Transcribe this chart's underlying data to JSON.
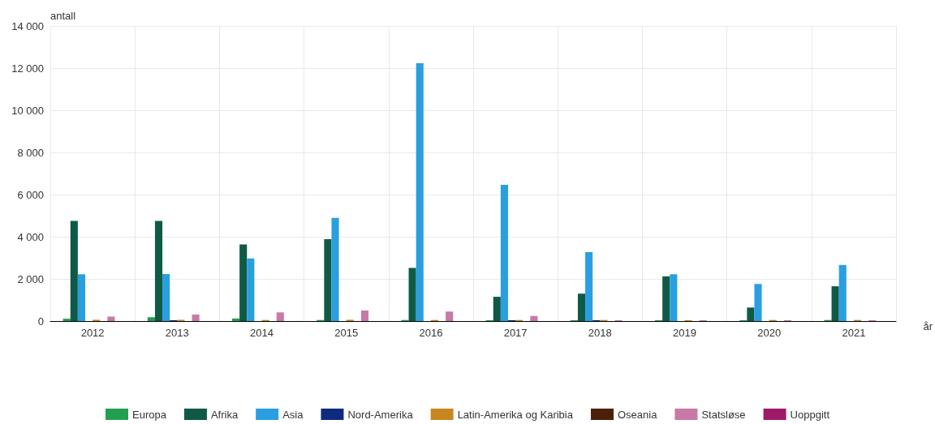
{
  "chart_data": {
    "type": "bar",
    "xlabel": "år",
    "ylabel": "antall",
    "categories": [
      "2012",
      "2013",
      "2014",
      "2015",
      "2016",
      "2017",
      "2018",
      "2019",
      "2020",
      "2021"
    ],
    "series": [
      {
        "name": "Europa",
        "color": "#22a050",
        "values": [
          110,
          180,
          120,
          50,
          50,
          40,
          40,
          40,
          40,
          50
        ]
      },
      {
        "name": "Afrika",
        "color": "#0f5a46",
        "values": [
          4750,
          4750,
          3630,
          3880,
          2520,
          1150,
          1300,
          2120,
          640,
          1650
        ]
      },
      {
        "name": "Asia",
        "color": "#2a9fe0",
        "values": [
          2220,
          2230,
          2970,
          4890,
          12230,
          6460,
          3270,
          2220,
          1760,
          2660
        ]
      },
      {
        "name": "Nord-Amerika",
        "color": "#0f2b80",
        "values": [
          0,
          40,
          0,
          0,
          0,
          40,
          40,
          0,
          0,
          0
        ]
      },
      {
        "name": "Latin-Amerika og Karibia",
        "color": "#c8861e",
        "values": [
          60,
          60,
          50,
          60,
          50,
          50,
          50,
          40,
          50,
          50
        ]
      },
      {
        "name": "Oseania",
        "color": "#4a2008",
        "values": [
          0,
          0,
          0,
          0,
          0,
          0,
          0,
          0,
          0,
          0
        ]
      },
      {
        "name": "Statsløse",
        "color": "#c879a8",
        "values": [
          210,
          310,
          410,
          500,
          450,
          240,
          40,
          40,
          40,
          40
        ]
      },
      {
        "name": "Uoppgitt",
        "color": "#a01868",
        "values": [
          0,
          0,
          0,
          0,
          0,
          0,
          0,
          0,
          0,
          0
        ]
      }
    ],
    "ylim": [
      0,
      14000
    ],
    "yticks": [
      {
        "value": 0,
        "label": "0"
      },
      {
        "value": 2000,
        "label": "2 000"
      },
      {
        "value": 4000,
        "label": "4 000"
      },
      {
        "value": 6000,
        "label": "6 000"
      },
      {
        "value": 8000,
        "label": "8 000"
      },
      {
        "value": 10000,
        "label": "10 000"
      },
      {
        "value": 12000,
        "label": "12 000"
      },
      {
        "value": 14000,
        "label": "14 000"
      }
    ],
    "grid": true,
    "legend": "bottom"
  }
}
